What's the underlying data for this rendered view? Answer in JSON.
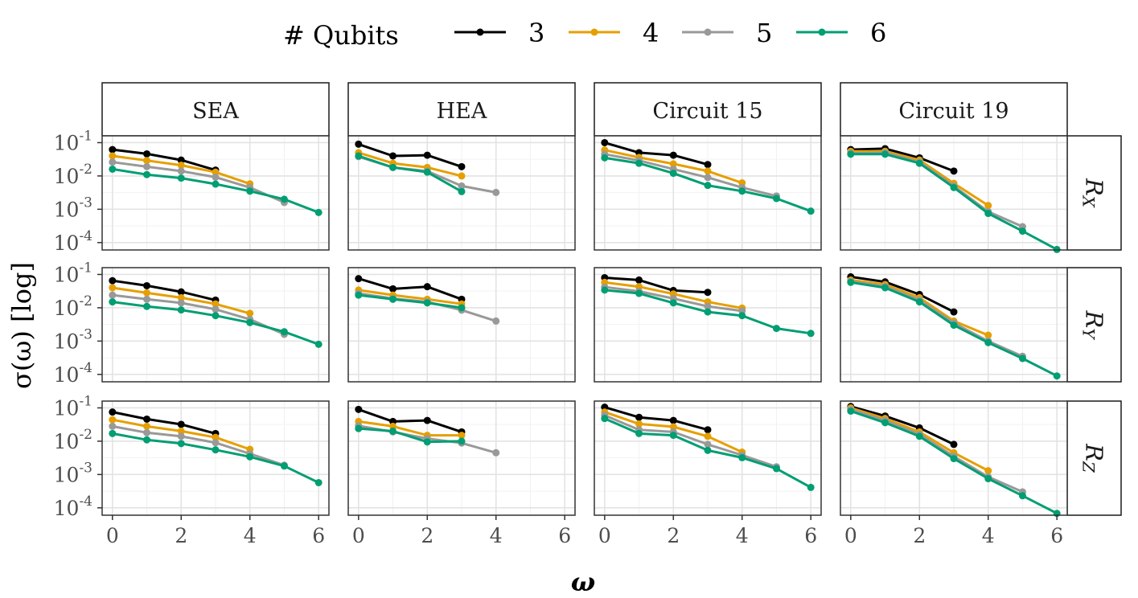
{
  "chart_data": {
    "type": "line",
    "xlabel": "ω",
    "ylabel": "σ(ω) [log]",
    "y_scale": "log",
    "ylim": [
      6e-05,
      0.16
    ],
    "xlim": [
      -0.3,
      6.3
    ],
    "x_ticks": [
      0,
      2,
      4,
      6
    ],
    "y_ticks": [
      0.0001,
      0.001,
      0.01,
      0.1
    ],
    "y_tick_base": "10",
    "y_tick_exponents": [
      "-4",
      "-3",
      "-2",
      "-1"
    ],
    "grid": true,
    "legend": {
      "title": "# Qubits",
      "placement": "top",
      "entries": [
        {
          "label": "3",
          "color": "#000000"
        },
        {
          "label": "4",
          "color": "#E69F00"
        },
        {
          "label": "5",
          "color": "#999999"
        },
        {
          "label": "6",
          "color": "#009E73"
        }
      ]
    },
    "columns": [
      "SEA",
      "HEA",
      "Circuit 15",
      "Circuit 19"
    ],
    "rows": [
      {
        "base": "R",
        "sub": "X"
      },
      {
        "base": "R",
        "sub": "Y"
      },
      {
        "base": "R",
        "sub": "Z"
      }
    ],
    "panels": [
      {
        "row": 0,
        "col": 0,
        "series": [
          {
            "qubits": "3",
            "x": [
              0,
              1,
              2,
              3
            ],
            "y": [
              0.062,
              0.046,
              0.03,
              0.015
            ]
          },
          {
            "qubits": "4",
            "x": [
              0,
              1,
              2,
              3,
              4
            ],
            "y": [
              0.04,
              0.029,
              0.021,
              0.013,
              0.0058
            ]
          },
          {
            "qubits": "5",
            "x": [
              0,
              1,
              2,
              3,
              4,
              5
            ],
            "y": [
              0.026,
              0.019,
              0.014,
              0.0092,
              0.0045,
              0.0016
            ]
          },
          {
            "qubits": "6",
            "x": [
              0,
              1,
              2,
              3,
              4,
              5,
              6
            ],
            "y": [
              0.016,
              0.011,
              0.0086,
              0.0057,
              0.0035,
              0.002,
              0.0008
            ]
          }
        ]
      },
      {
        "row": 0,
        "col": 1,
        "series": [
          {
            "qubits": "3",
            "x": [
              0,
              1,
              2,
              3
            ],
            "y": [
              0.09,
              0.04,
              0.042,
              0.019
            ]
          },
          {
            "qubits": "4",
            "x": [
              0,
              1,
              2,
              3
            ],
            "y": [
              0.05,
              0.024,
              0.018,
              0.01
            ]
          },
          {
            "qubits": "5",
            "x": [
              0,
              1,
              2,
              3,
              4
            ],
            "y": [
              0.038,
              0.018,
              0.014,
              0.005,
              0.0032
            ]
          },
          {
            "qubits": "6",
            "x": [
              0,
              1,
              2,
              3
            ],
            "y": [
              0.04,
              0.018,
              0.013,
              0.0034
            ]
          }
        ]
      },
      {
        "row": 0,
        "col": 2,
        "series": [
          {
            "qubits": "3",
            "x": [
              0,
              1,
              2,
              3
            ],
            "y": [
              0.1,
              0.05,
              0.042,
              0.022
            ]
          },
          {
            "qubits": "4",
            "x": [
              0,
              1,
              2,
              3,
              4
            ],
            "y": [
              0.06,
              0.036,
              0.023,
              0.014,
              0.0062
            ]
          },
          {
            "qubits": "5",
            "x": [
              0,
              1,
              2,
              3,
              4,
              5
            ],
            "y": [
              0.045,
              0.029,
              0.016,
              0.009,
              0.0045,
              0.0025
            ]
          },
          {
            "qubits": "6",
            "x": [
              0,
              1,
              2,
              3,
              4,
              5,
              6
            ],
            "y": [
              0.035,
              0.024,
              0.012,
              0.0052,
              0.0035,
              0.0021,
              0.00088
            ]
          }
        ]
      },
      {
        "row": 0,
        "col": 3,
        "series": [
          {
            "qubits": "3",
            "x": [
              0,
              1,
              2,
              3
            ],
            "y": [
              0.062,
              0.066,
              0.035,
              0.014
            ]
          },
          {
            "qubits": "4",
            "x": [
              0,
              1,
              2,
              3,
              4
            ],
            "y": [
              0.055,
              0.055,
              0.03,
              0.006,
              0.0013
            ]
          },
          {
            "qubits": "5",
            "x": [
              0,
              1,
              2,
              3,
              4,
              5
            ],
            "y": [
              0.048,
              0.05,
              0.026,
              0.005,
              0.00085,
              0.0003
            ]
          },
          {
            "qubits": "6",
            "x": [
              0,
              1,
              2,
              3,
              4,
              5,
              6
            ],
            "y": [
              0.045,
              0.045,
              0.024,
              0.0045,
              0.00075,
              0.00022,
              6.2e-05
            ]
          }
        ]
      },
      {
        "row": 1,
        "col": 0,
        "series": [
          {
            "qubits": "3",
            "x": [
              0,
              1,
              2,
              3
            ],
            "y": [
              0.065,
              0.046,
              0.03,
              0.017
            ]
          },
          {
            "qubits": "4",
            "x": [
              0,
              1,
              2,
              3,
              4
            ],
            "y": [
              0.04,
              0.028,
              0.02,
              0.013,
              0.0068
            ]
          },
          {
            "qubits": "5",
            "x": [
              0,
              1,
              2,
              3,
              4,
              5
            ],
            "y": [
              0.024,
              0.018,
              0.014,
              0.009,
              0.0045,
              0.0016
            ]
          },
          {
            "qubits": "6",
            "x": [
              0,
              1,
              2,
              3,
              4,
              5,
              6
            ],
            "y": [
              0.015,
              0.011,
              0.0086,
              0.0058,
              0.0036,
              0.0019,
              0.0008
            ]
          }
        ]
      },
      {
        "row": 1,
        "col": 1,
        "series": [
          {
            "qubits": "3",
            "x": [
              0,
              1,
              2,
              3
            ],
            "y": [
              0.075,
              0.037,
              0.043,
              0.018
            ]
          },
          {
            "qubits": "4",
            "x": [
              0,
              1,
              2,
              3
            ],
            "y": [
              0.034,
              0.024,
              0.018,
              0.013
            ]
          },
          {
            "qubits": "5",
            "x": [
              0,
              1,
              2,
              3,
              4
            ],
            "y": [
              0.027,
              0.019,
              0.015,
              0.0085,
              0.004
            ]
          },
          {
            "qubits": "6",
            "x": [
              0,
              1,
              2,
              3
            ],
            "y": [
              0.024,
              0.018,
              0.014,
              0.01
            ]
          }
        ]
      },
      {
        "row": 1,
        "col": 2,
        "series": [
          {
            "qubits": "3",
            "x": [
              0,
              1,
              2,
              3
            ],
            "y": [
              0.08,
              0.068,
              0.033,
              0.029
            ]
          },
          {
            "qubits": "4",
            "x": [
              0,
              1,
              2,
              3,
              4
            ],
            "y": [
              0.058,
              0.043,
              0.026,
              0.015,
              0.0098
            ]
          },
          {
            "qubits": "5",
            "x": [
              0,
              1,
              2,
              3,
              4
            ],
            "y": [
              0.042,
              0.031,
              0.019,
              0.011,
              0.008
            ]
          },
          {
            "qubits": "6",
            "x": [
              0,
              1,
              2,
              3,
              4,
              5,
              6
            ],
            "y": [
              0.034,
              0.027,
              0.014,
              0.0075,
              0.0058,
              0.0024,
              0.0017
            ]
          }
        ]
      },
      {
        "row": 1,
        "col": 3,
        "series": [
          {
            "qubits": "3",
            "x": [
              0,
              1,
              2,
              3
            ],
            "y": [
              0.085,
              0.06,
              0.025,
              0.0075
            ]
          },
          {
            "qubits": "4",
            "x": [
              0,
              1,
              2,
              3,
              4
            ],
            "y": [
              0.068,
              0.05,
              0.02,
              0.004,
              0.0015
            ]
          },
          {
            "qubits": "5",
            "x": [
              0,
              1,
              2,
              3,
              4,
              5
            ],
            "y": [
              0.062,
              0.044,
              0.017,
              0.0035,
              0.001,
              0.00035
            ]
          },
          {
            "qubits": "6",
            "x": [
              0,
              1,
              2,
              3,
              4,
              5,
              6
            ],
            "y": [
              0.058,
              0.04,
              0.015,
              0.003,
              0.0009,
              0.0003,
              9e-05
            ]
          }
        ]
      },
      {
        "row": 2,
        "col": 0,
        "series": [
          {
            "qubits": "3",
            "x": [
              0,
              1,
              2,
              3
            ],
            "y": [
              0.075,
              0.046,
              0.032,
              0.017
            ]
          },
          {
            "qubits": "4",
            "x": [
              0,
              1,
              2,
              3,
              4
            ],
            "y": [
              0.044,
              0.028,
              0.02,
              0.013,
              0.0057
            ]
          },
          {
            "qubits": "5",
            "x": [
              0,
              1,
              2,
              3,
              4,
              5
            ],
            "y": [
              0.028,
              0.018,
              0.014,
              0.009,
              0.0042,
              0.0019
            ]
          },
          {
            "qubits": "6",
            "x": [
              0,
              1,
              2,
              3,
              4,
              5,
              6
            ],
            "y": [
              0.017,
              0.011,
              0.0085,
              0.0055,
              0.0034,
              0.0018,
              0.00057
            ]
          }
        ]
      },
      {
        "row": 2,
        "col": 1,
        "series": [
          {
            "qubits": "3",
            "x": [
              0,
              1,
              2,
              3
            ],
            "y": [
              0.09,
              0.039,
              0.042,
              0.019
            ]
          },
          {
            "qubits": "4",
            "x": [
              0,
              1,
              2,
              3
            ],
            "y": [
              0.039,
              0.028,
              0.015,
              0.015
            ]
          },
          {
            "qubits": "5",
            "x": [
              0,
              1,
              2,
              3,
              4
            ],
            "y": [
              0.029,
              0.019,
              0.012,
              0.0088,
              0.0045
            ]
          },
          {
            "qubits": "6",
            "x": [
              0,
              1,
              2,
              3
            ],
            "y": [
              0.024,
              0.02,
              0.0095,
              0.01
            ]
          }
        ]
      },
      {
        "row": 2,
        "col": 2,
        "series": [
          {
            "qubits": "3",
            "x": [
              0,
              1,
              2,
              3
            ],
            "y": [
              0.105,
              0.052,
              0.042,
              0.022
            ]
          },
          {
            "qubits": "4",
            "x": [
              0,
              1,
              2,
              3,
              4
            ],
            "y": [
              0.075,
              0.033,
              0.027,
              0.014,
              0.0047
            ]
          },
          {
            "qubits": "5",
            "x": [
              0,
              1,
              2,
              3,
              4,
              5
            ],
            "y": [
              0.06,
              0.022,
              0.019,
              0.008,
              0.0038,
              0.0017
            ]
          },
          {
            "qubits": "6",
            "x": [
              0,
              1,
              2,
              3,
              4,
              5,
              6
            ],
            "y": [
              0.048,
              0.017,
              0.015,
              0.0053,
              0.0032,
              0.0015,
              0.00041
            ]
          }
        ]
      },
      {
        "row": 2,
        "col": 3,
        "series": [
          {
            "qubits": "3",
            "x": [
              0,
              1,
              2,
              3
            ],
            "y": [
              0.11,
              0.057,
              0.025,
              0.008
            ]
          },
          {
            "qubits": "4",
            "x": [
              0,
              1,
              2,
              3,
              4
            ],
            "y": [
              0.1,
              0.048,
              0.019,
              0.0045,
              0.0013
            ]
          },
          {
            "qubits": "5",
            "x": [
              0,
              1,
              2,
              3,
              4,
              5
            ],
            "y": [
              0.09,
              0.042,
              0.016,
              0.0035,
              0.00085,
              0.0003
            ]
          },
          {
            "qubits": "6",
            "x": [
              0,
              1,
              2,
              3,
              4,
              5,
              6
            ],
            "y": [
              0.08,
              0.036,
              0.014,
              0.003,
              0.00075,
              0.00023,
              6.8e-05
            ]
          }
        ]
      }
    ]
  }
}
